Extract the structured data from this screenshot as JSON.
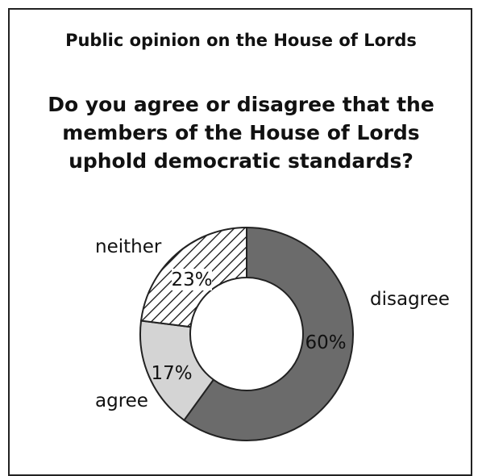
{
  "title": "Public opinion on the House of Lords",
  "question": "Do you agree or disagree that the members of the House of Lords uphold democratic standards?",
  "chart_data": {
    "type": "pie",
    "donut": true,
    "slices": [
      {
        "label": "disagree",
        "value": 60,
        "value_label": "60%",
        "color": "#6b6b6b",
        "pattern": "solid"
      },
      {
        "label": "agree",
        "value": 17,
        "value_label": "17%",
        "color": "#d4d4d4",
        "pattern": "solid"
      },
      {
        "label": "neither",
        "value": 23,
        "value_label": "23%",
        "color": "#ffffff",
        "pattern": "diagonal-hatch"
      }
    ]
  }
}
